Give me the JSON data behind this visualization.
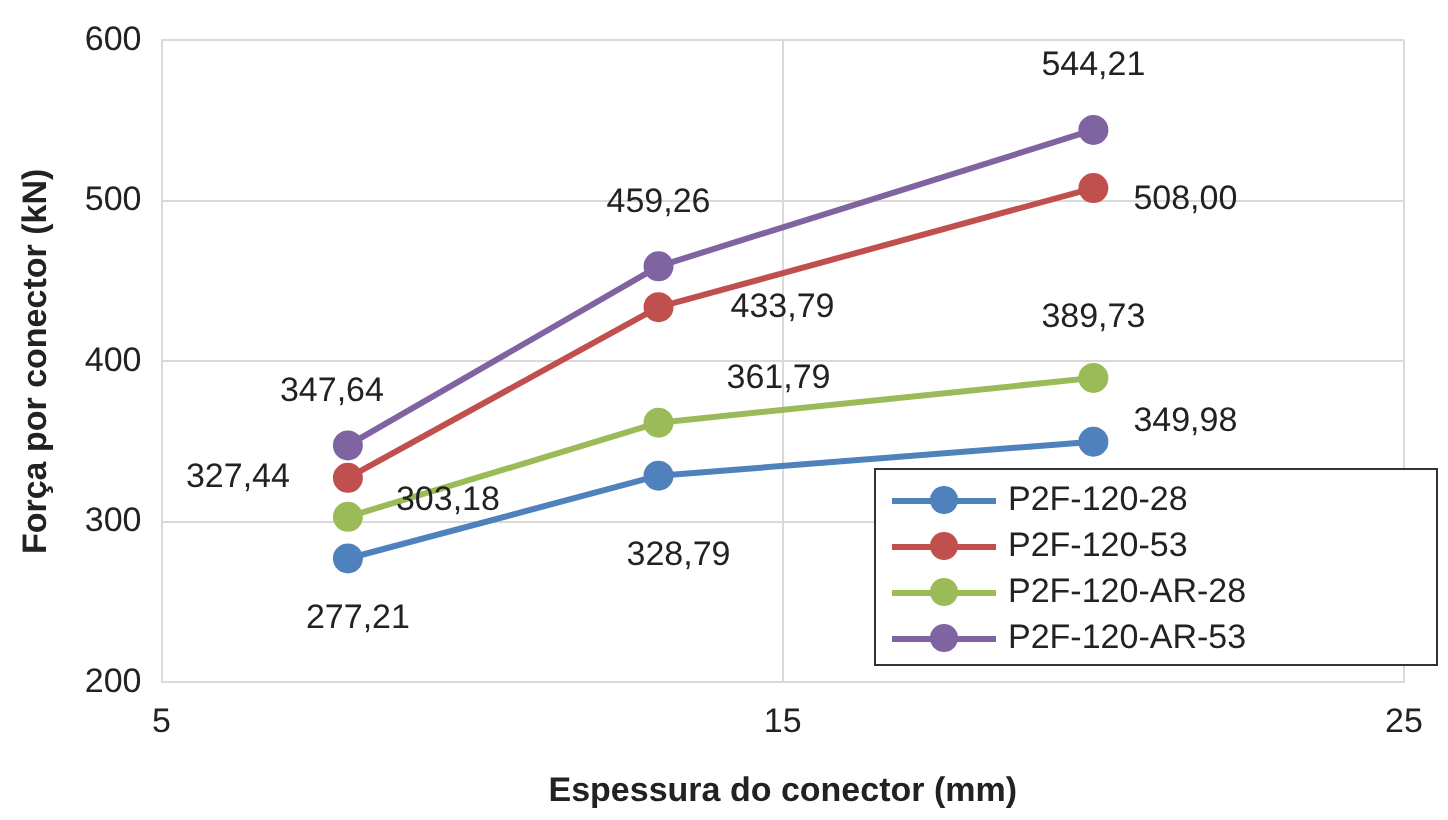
{
  "chart_data": {
    "type": "line",
    "xlabel": "Espessura do conector (mm)",
    "ylabel": "Força por conector (kN)",
    "x": [
      8,
      13,
      20
    ],
    "xlim": [
      5,
      25
    ],
    "xticks": [
      5,
      15,
      25
    ],
    "ylim": [
      200,
      600
    ],
    "yticks": [
      200,
      300,
      400,
      500,
      600
    ],
    "grid": true,
    "legend": "bottom right",
    "marker": "circle",
    "line_style": "solid",
    "series": [
      {
        "name": "P2F-120-28",
        "color": "#4f81bd",
        "values": [
          277.21,
          328.79,
          349.98
        ],
        "value_labels": [
          "277,21",
          "328,79",
          "349,98"
        ]
      },
      {
        "name": "P2F-120-53",
        "color": "#c0504d",
        "values": [
          327.44,
          433.79,
          508.0
        ],
        "value_labels": [
          "327,44",
          "433,79",
          "508,00"
        ]
      },
      {
        "name": "P2F-120-AR-28",
        "color": "#9bbb59",
        "values": [
          303.18,
          361.79,
          389.73
        ],
        "value_labels": [
          "303,18",
          "361,79",
          "389,73"
        ]
      },
      {
        "name": "P2F-120-AR-53",
        "color": "#8064a2",
        "values": [
          347.64,
          459.26,
          544.21
        ],
        "value_labels": [
          "347,64",
          "459,26",
          "544,21"
        ]
      }
    ]
  }
}
